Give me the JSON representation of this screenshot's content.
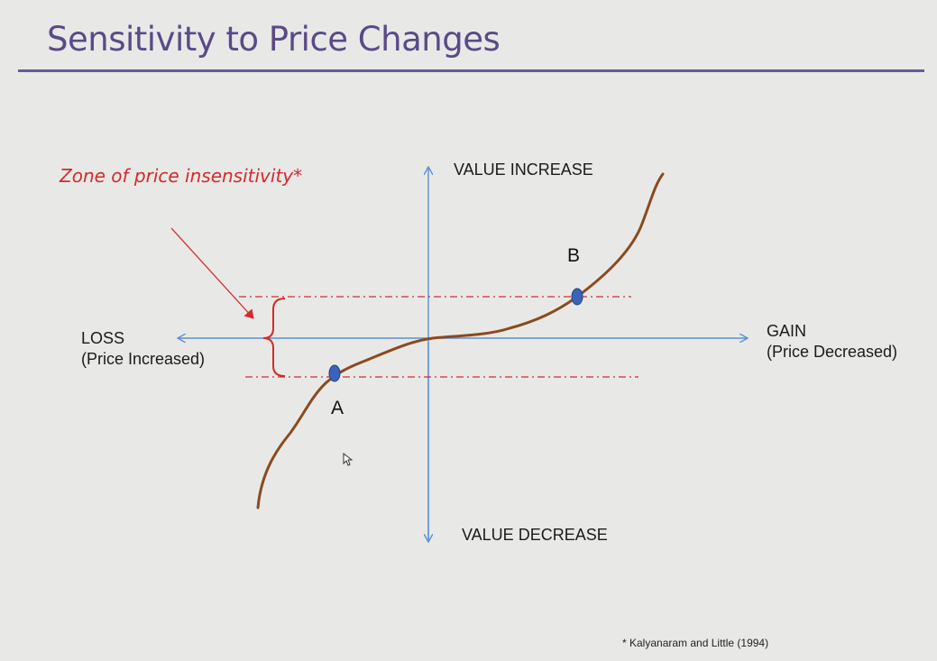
{
  "slide": {
    "title": "Sensitivity to Price Changes",
    "citation": "* Kalyanaram and Little (1994)"
  },
  "diagram": {
    "y_axis": {
      "top_label": "VALUE INCREASE",
      "bottom_label": "VALUE DECREASE"
    },
    "x_axis": {
      "left_label_line1": "LOSS",
      "left_label_line2": "(Price Increased)",
      "right_label_line1": "GAIN",
      "right_label_line2": "(Price Decreased)"
    },
    "zone_label": "Zone of price insensitivity*",
    "points": [
      {
        "id": "A",
        "label": "A"
      },
      {
        "id": "B",
        "label": "B"
      }
    ],
    "colors": {
      "axis": "#5b8fd6",
      "curve": "#8b4a1e",
      "zone": "#d42a2a",
      "point": "#3a64b8",
      "title": "#5b4a86"
    }
  }
}
